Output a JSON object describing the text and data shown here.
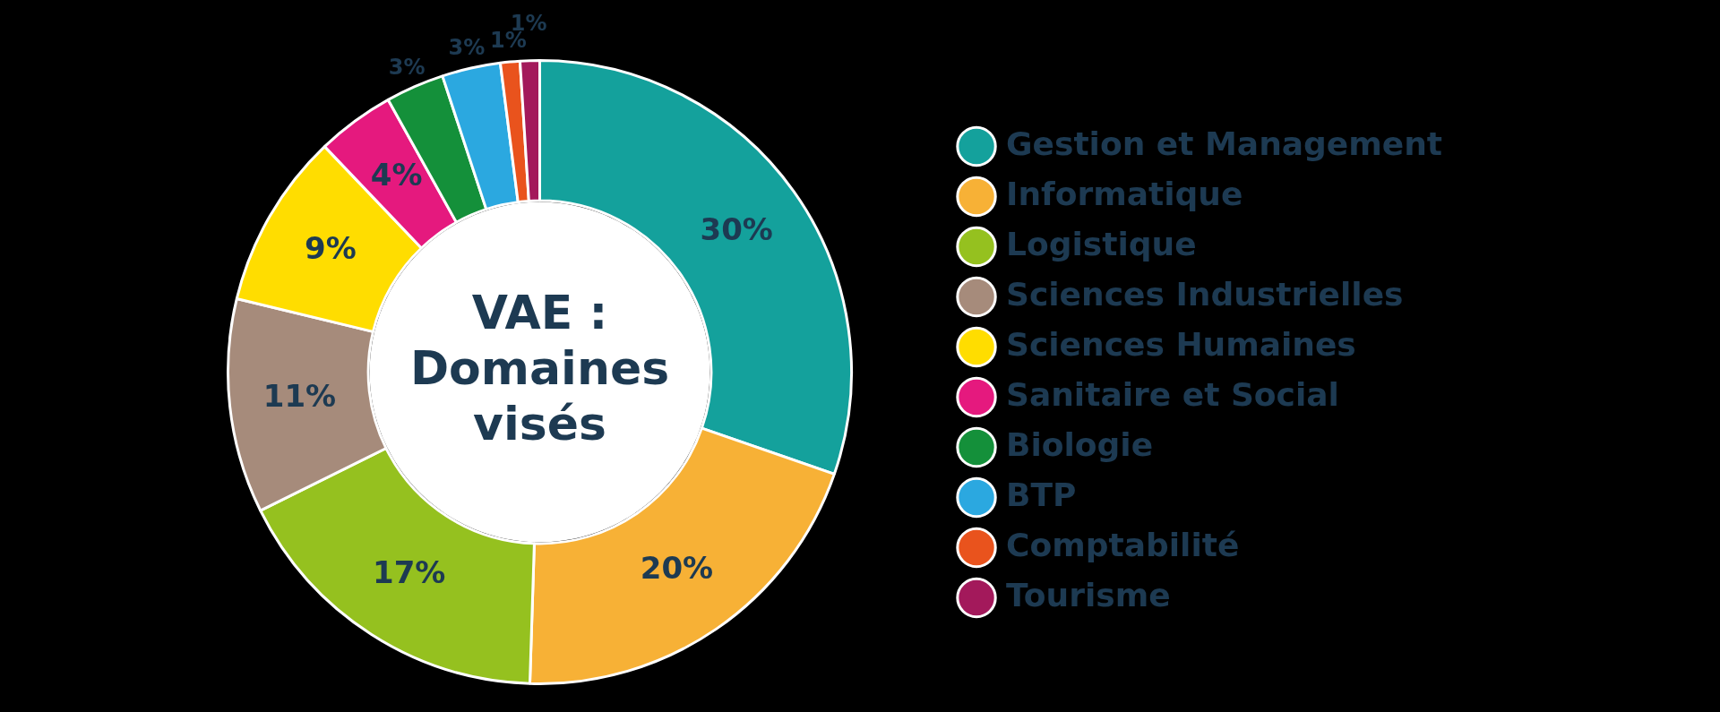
{
  "chart_data": {
    "type": "donut",
    "title": "VAE : Domaines visés",
    "categories": [
      "Gestion et Management",
      "Informatique",
      "Logistique",
      "Sciences Industrielles",
      "Sciences Humaines",
      "Sanitaire et Social",
      "Biologie",
      "BTP",
      "Comptabilité",
      "Tourisme"
    ],
    "values": [
      30,
      20,
      17,
      11,
      9,
      4,
      3,
      3,
      1,
      1
    ],
    "colors": [
      "#14a19c",
      "#f7b136",
      "#95c11f",
      "#a68b7b",
      "#ffdd00",
      "#e5197e",
      "#14903a",
      "#2ba8e0",
      "#e9531d",
      "#a3195b"
    ],
    "value_labels": [
      "30%",
      "20%",
      "17%",
      "11%",
      "9%",
      "4%",
      "3%",
      "3%",
      "1%",
      "1%"
    ],
    "legend": "right"
  }
}
